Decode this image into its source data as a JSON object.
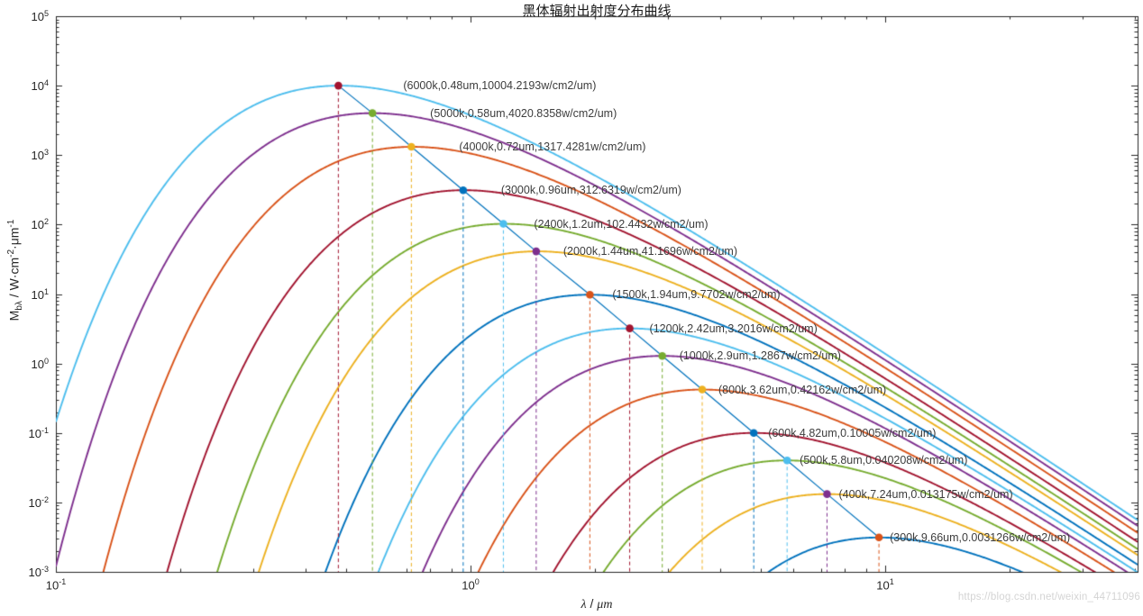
{
  "title": "黑体辐射出射度分布曲线",
  "watermark": "https://blog.csdn.net/weixin_44711096",
  "axis": {
    "tick_base": "10"
  },
  "chart_data": {
    "type": "line",
    "title": "黑体辐射出射度分布曲线",
    "xlabel": "λ / μm",
    "ylabel": "M_bλ / W·cm^-2·μm^-1",
    "xlabel_parts": {
      "var": "λ",
      "sep": " / ",
      "unit": "μm"
    },
    "ylabel_parts": {
      "main": "M",
      "sub": "bλ",
      "unit1": " / W·cm",
      "exp1": "-2",
      "unit2": "·μm",
      "exp2": "-1"
    },
    "x_scale": "log",
    "y_scale": "log",
    "xlim": [
      0.1,
      40.64
    ],
    "ylim": [
      0.001,
      100000
    ],
    "x_tick_exponents": [
      -1,
      0,
      1
    ],
    "y_tick_exponents": [
      5,
      4,
      3,
      2,
      1,
      0,
      -1,
      -2,
      -3
    ],
    "grid": false,
    "legend": "none",
    "palette": {
      "blue": "#0072BD",
      "orange": "#D95319",
      "yellow": "#EDB120",
      "purple": "#7E2F8E",
      "green": "#77AC30",
      "cyan": "#4DBEEE",
      "dark_red": "#A2142F"
    },
    "peak_locus_color": "#0072BD",
    "series": [
      {
        "temperature_k": 300,
        "curve_color": "#0072BD",
        "marker_color": "#D95319",
        "peak": {
          "lambda_um": 9.66,
          "exitance_w_cm2_um": 0.0031266
        },
        "annotation": "(300k,9.66um,0.0031266w/cm2/um)"
      },
      {
        "temperature_k": 400,
        "curve_color": "#EDB120",
        "marker_color": "#7E2F8E",
        "peak": {
          "lambda_um": 7.24,
          "exitance_w_cm2_um": 0.013175
        },
        "annotation": "(400k,7.24um,0.013175w/cm2/um)"
      },
      {
        "temperature_k": 500,
        "curve_color": "#77AC30",
        "marker_color": "#4DBEEE",
        "peak": {
          "lambda_um": 5.8,
          "exitance_w_cm2_um": 0.040208
        },
        "annotation": "(500k,5.8um,0.040208w/cm2/um)"
      },
      {
        "temperature_k": 600,
        "curve_color": "#A2142F",
        "marker_color": "#0072BD",
        "peak": {
          "lambda_um": 4.82,
          "exitance_w_cm2_um": 0.10005
        },
        "annotation": "(600k,4.82um,0.10005w/cm2/um)"
      },
      {
        "temperature_k": 800,
        "curve_color": "#D95319",
        "marker_color": "#EDB120",
        "peak": {
          "lambda_um": 3.62,
          "exitance_w_cm2_um": 0.42162
        },
        "annotation": "(800k,3.62um,0.42162w/cm2/um)"
      },
      {
        "temperature_k": 1000,
        "curve_color": "#7E2F8E",
        "marker_color": "#77AC30",
        "peak": {
          "lambda_um": 2.9,
          "exitance_w_cm2_um": 1.2867
        },
        "annotation": "(1000k,2.9um,1.2867w/cm2/um)"
      },
      {
        "temperature_k": 1200,
        "curve_color": "#4DBEEE",
        "marker_color": "#A2142F",
        "peak": {
          "lambda_um": 2.42,
          "exitance_w_cm2_um": 3.2016
        },
        "annotation": "(1200k,2.42um,3.2016w/cm2/um)"
      },
      {
        "temperature_k": 1500,
        "curve_color": "#0072BD",
        "marker_color": "#D95319",
        "peak": {
          "lambda_um": 1.94,
          "exitance_w_cm2_um": 9.7702
        },
        "annotation": "(1500k,1.94um,9.7702w/cm2/um)"
      },
      {
        "temperature_k": 2000,
        "curve_color": "#EDB120",
        "marker_color": "#7E2F8E",
        "peak": {
          "lambda_um": 1.44,
          "exitance_w_cm2_um": 41.1696
        },
        "annotation": "(2000k,1.44um,41.1696w/cm2/um)"
      },
      {
        "temperature_k": 2400,
        "curve_color": "#77AC30",
        "marker_color": "#4DBEEE",
        "peak": {
          "lambda_um": 1.2,
          "exitance_w_cm2_um": 102.4432
        },
        "annotation": "(2400k,1.2um,102.4432w/cm2/um)"
      },
      {
        "temperature_k": 3000,
        "curve_color": "#A2142F",
        "marker_color": "#0072BD",
        "peak": {
          "lambda_um": 0.96,
          "exitance_w_cm2_um": 312.6319
        },
        "annotation": "(3000k,0.96um,312.6319w/cm2/um)"
      },
      {
        "temperature_k": 4000,
        "curve_color": "#D95319",
        "marker_color": "#EDB120",
        "peak": {
          "lambda_um": 0.72,
          "exitance_w_cm2_um": 1317.4281
        },
        "annotation": "(4000k,0.72um,1317.4281w/cm2/um)"
      },
      {
        "temperature_k": 5000,
        "curve_color": "#7E2F8E",
        "marker_color": "#77AC30",
        "peak": {
          "lambda_um": 0.58,
          "exitance_w_cm2_um": 4020.8358
        },
        "annotation": "(5000k,0.58um,4020.8358w/cm2/um)"
      },
      {
        "temperature_k": 6000,
        "curve_color": "#4DBEEE",
        "marker_color": "#A2142F",
        "peak": {
          "lambda_um": 0.48,
          "exitance_w_cm2_um": 10004.2193
        },
        "annotation": "(6000k,0.48um,10004.2193w/cm2/um)"
      }
    ]
  }
}
